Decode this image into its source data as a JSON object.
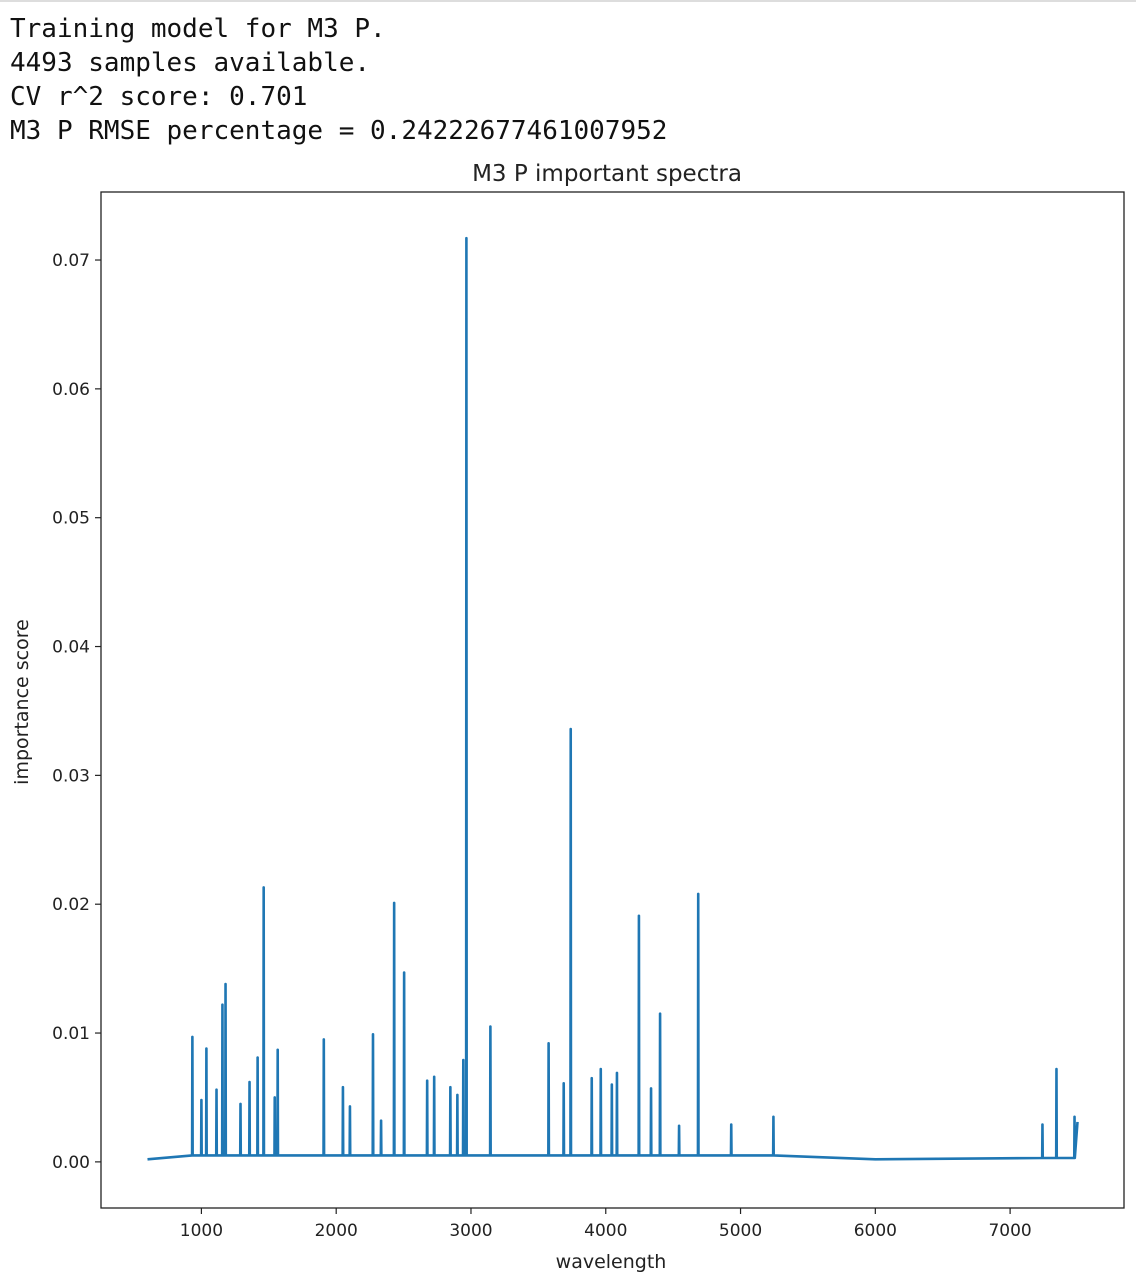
{
  "output_lines": [
    "Training model for M3 P.",
    "4493 samples available.",
    "CV r^2 score: 0.701",
    "M3 P RMSE percentage = 0.24222677461007952"
  ],
  "chart_data": {
    "type": "line",
    "title": "M3 P important spectra",
    "x_label": "wavelength",
    "y_label": "importance score",
    "color": "#1f77b4",
    "xlim": [
      255,
      7845
    ],
    "ylim": [
      -0.00358,
      0.07528
    ],
    "xticks": [
      1000,
      2000,
      3000,
      4000,
      5000,
      6000,
      7000
    ],
    "yticks": [
      {
        "value": 0,
        "label": "0.00"
      },
      0.01,
      0.02,
      0.03,
      0.04,
      0.05,
      0.06,
      0.07
    ],
    "x": [
      600,
      931,
      933,
      935,
      998,
      1000,
      1002,
      1035,
      1037,
      1039,
      1110,
      1112,
      1114,
      1154,
      1156,
      1158,
      1177,
      1179,
      1181,
      1288,
      1290,
      1292,
      1355,
      1357,
      1359,
      1415,
      1417,
      1419,
      1460,
      1462,
      1464,
      1542,
      1544,
      1546,
      1564,
      1566,
      1568,
      1906,
      1908,
      1910,
      2048,
      2050,
      2052,
      2100,
      2102,
      2104,
      2271,
      2273,
      2275,
      2331,
      2333,
      2335,
      2428,
      2430,
      2432,
      2502,
      2504,
      2506,
      2673,
      2675,
      2677,
      2725,
      2727,
      2729,
      2845,
      2847,
      2849,
      2897,
      2899,
      2901,
      2941,
      2943,
      2945,
      2964,
      2966,
      2968,
      3142,
      3144,
      3146,
      3574,
      3576,
      3578,
      3686,
      3688,
      3690,
      3738,
      3740,
      3742,
      3894,
      3896,
      3898,
      3961,
      3963,
      3965,
      4043,
      4045,
      4047,
      4081,
      4083,
      4085,
      4244,
      4246,
      4248,
      4334,
      4336,
      4338,
      4401,
      4403,
      4405,
      4542,
      4544,
      4546,
      4684,
      4686,
      4688,
      4929,
      4931,
      4933,
      5242,
      5244,
      5246,
      6000,
      7238,
      7240,
      7242,
      7342,
      7344,
      7346,
      7476,
      7478,
      7480,
      7500
    ],
    "values": [
      0.0002,
      0.0005,
      0.0097,
      0.0005,
      0.0005,
      0.0048,
      0.0005,
      0.0005,
      0.0088,
      0.0005,
      0.0005,
      0.0056,
      0.0005,
      0.0005,
      0.0122,
      0.0005,
      0.0005,
      0.0138,
      0.0005,
      0.0005,
      0.0045,
      0.0005,
      0.0005,
      0.0062,
      0.0005,
      0.0005,
      0.0081,
      0.0005,
      0.0005,
      0.0213,
      0.0005,
      0.0005,
      0.005,
      0.0005,
      0.0005,
      0.0087,
      0.0005,
      0.0005,
      0.0095,
      0.0005,
      0.0005,
      0.0058,
      0.0005,
      0.0005,
      0.0043,
      0.0005,
      0.0005,
      0.0099,
      0.0005,
      0.0005,
      0.0032,
      0.0005,
      0.0005,
      0.0201,
      0.0005,
      0.0005,
      0.0147,
      0.0005,
      0.0005,
      0.0063,
      0.0005,
      0.0005,
      0.0066,
      0.0005,
      0.0005,
      0.0058,
      0.0005,
      0.0005,
      0.0052,
      0.0005,
      0.0005,
      0.0079,
      0.0005,
      0.0005,
      0.0717,
      0.0005,
      0.0005,
      0.0105,
      0.0005,
      0.0005,
      0.0092,
      0.0005,
      0.0005,
      0.0061,
      0.0005,
      0.0005,
      0.0336,
      0.0005,
      0.0005,
      0.0065,
      0.0005,
      0.0005,
      0.0072,
      0.0005,
      0.0005,
      0.006,
      0.0005,
      0.0005,
      0.0069,
      0.0005,
      0.0005,
      0.0191,
      0.0005,
      0.0005,
      0.0057,
      0.0005,
      0.0005,
      0.0115,
      0.0005,
      0.0005,
      0.0028,
      0.0005,
      0.0005,
      0.0208,
      0.0005,
      0.0005,
      0.0029,
      0.0005,
      0.0005,
      0.0035,
      0.0005,
      0.0002,
      0.0003,
      0.0029,
      0.0003,
      0.0003,
      0.0072,
      0.0003,
      0.0003,
      0.0035,
      0.0003,
      0.0031
    ]
  }
}
